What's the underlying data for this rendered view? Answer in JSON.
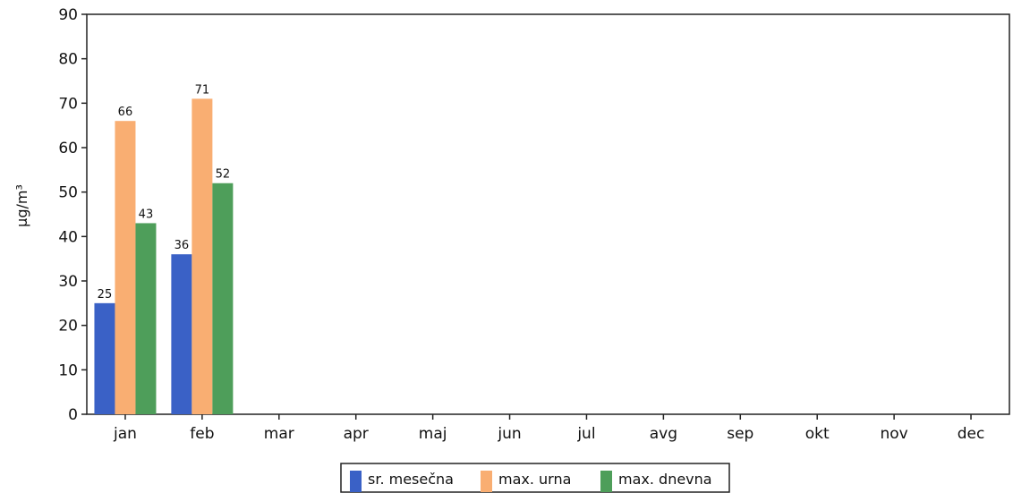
{
  "chart_data": {
    "type": "bar",
    "title": "",
    "xlabel": "",
    "ylabel": "µg/m³",
    "ylim": [
      0,
      90
    ],
    "yticks": [
      0,
      10,
      20,
      30,
      40,
      50,
      60,
      70,
      80,
      90
    ],
    "categories": [
      "jan",
      "feb",
      "mar",
      "apr",
      "maj",
      "jun",
      "jul",
      "avg",
      "sep",
      "okt",
      "nov",
      "dec"
    ],
    "series": [
      {
        "name": "sr. mesečna",
        "color": "#3A61C6",
        "values": [
          25,
          36,
          null,
          null,
          null,
          null,
          null,
          null,
          null,
          null,
          null,
          null
        ]
      },
      {
        "name": "max. urna",
        "color": "#F9AE72",
        "values": [
          66,
          71,
          null,
          null,
          null,
          null,
          null,
          null,
          null,
          null,
          null,
          null
        ]
      },
      {
        "name": "max. dnevna",
        "color": "#4E9E5A",
        "values": [
          43,
          52,
          null,
          null,
          null,
          null,
          null,
          null,
          null,
          null,
          null,
          null
        ]
      }
    ],
    "data_labels": true,
    "grid": false,
    "legend_position": "bottom-center"
  }
}
